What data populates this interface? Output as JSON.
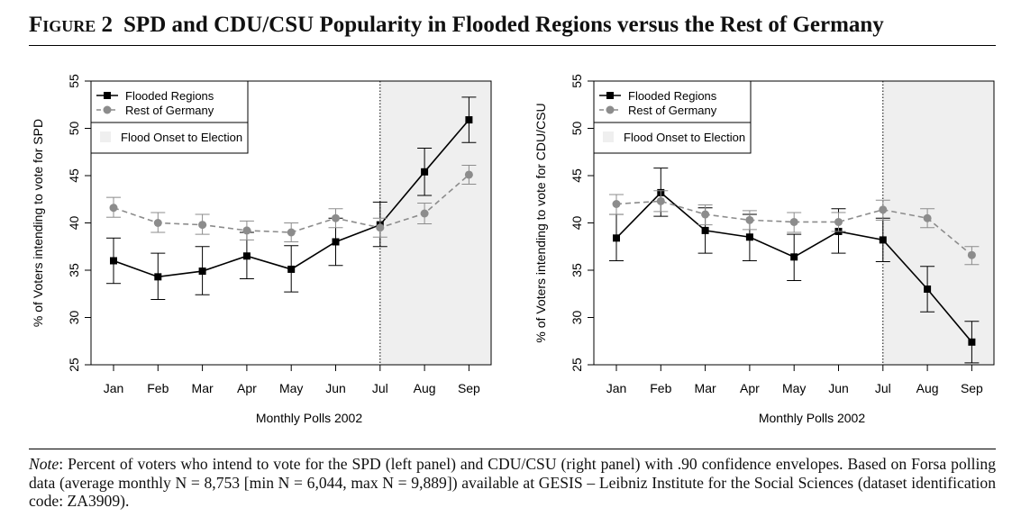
{
  "figure": {
    "label": "Figure 2",
    "title": "SPD and CDU/CSU Popularity in Flooded Regions versus the Rest of Germany"
  },
  "note": {
    "label": "Note",
    "text": ": Percent of voters who intend to vote for the SPD (left panel) and CDU/CSU (right panel) with .90 confidence envelopes. Based on Forsa polling data (average monthly N = 8,753 [min N = 6,044, max N = 9,889]) available at GESIS – Leibniz Institute for the Social Sciences (dataset identification code: ZA3909)."
  },
  "colors": {
    "flooded": "#000000",
    "rest": "#8c8c8c",
    "shade": "#efefef"
  },
  "chart_data": [
    {
      "type": "line",
      "ylabel": "% of Voters intending to vote for SPD",
      "xlabel": "Monthly Polls 2002",
      "categories": [
        "Jan",
        "Feb",
        "Mar",
        "Apr",
        "May",
        "Jun",
        "Jul",
        "Aug",
        "Sep"
      ],
      "ylim": [
        25,
        55
      ],
      "yticks": [
        25,
        30,
        35,
        40,
        45,
        50,
        55
      ],
      "shaded_region": {
        "from": "Jul",
        "to": "Sep",
        "label": "Flood Onset to Election"
      },
      "legend_position": "top-left",
      "series": [
        {
          "name": "Flooded Regions",
          "marker": "square",
          "line": "solid",
          "values": [
            36.0,
            34.3,
            34.9,
            36.5,
            35.1,
            38.0,
            39.8,
            45.4,
            50.9
          ],
          "lower": [
            33.6,
            31.9,
            32.4,
            34.1,
            32.7,
            35.5,
            37.5,
            42.9,
            48.5
          ],
          "upper": [
            38.4,
            36.8,
            37.5,
            39.0,
            37.6,
            40.5,
            42.2,
            47.9,
            53.3
          ]
        },
        {
          "name": "Rest of Germany",
          "marker": "circle",
          "line": "dashed",
          "values": [
            41.6,
            40.0,
            39.8,
            39.2,
            39.0,
            40.5,
            39.5,
            41.0,
            45.1
          ],
          "lower": [
            40.6,
            39.0,
            38.8,
            38.2,
            38.0,
            39.5,
            38.5,
            39.9,
            44.1
          ],
          "upper": [
            42.7,
            41.1,
            40.9,
            40.2,
            40.0,
            41.5,
            40.5,
            42.1,
            46.1
          ]
        }
      ]
    },
    {
      "type": "line",
      "ylabel": "% of Voters intending to vote for CDU/CSU",
      "xlabel": "Monthly Polls 2002",
      "categories": [
        "Jan",
        "Feb",
        "Mar",
        "Apr",
        "May",
        "Jun",
        "Jul",
        "Aug",
        "Sep"
      ],
      "ylim": [
        25,
        55
      ],
      "yticks": [
        25,
        30,
        35,
        40,
        45,
        50,
        55
      ],
      "shaded_region": {
        "from": "Jul",
        "to": "Sep",
        "label": "Flood Onset to Election"
      },
      "legend_position": "top-left",
      "series": [
        {
          "name": "Flooded Regions",
          "marker": "square",
          "line": "solid",
          "values": [
            38.4,
            43.2,
            39.2,
            38.5,
            36.4,
            39.1,
            38.2,
            33.0,
            27.4
          ],
          "lower": [
            36.0,
            40.7,
            36.8,
            36.0,
            33.9,
            36.8,
            35.9,
            30.6,
            25.2
          ],
          "upper": [
            40.9,
            45.8,
            41.6,
            40.9,
            38.8,
            41.5,
            40.5,
            35.4,
            29.6
          ]
        },
        {
          "name": "Rest of Germany",
          "marker": "circle",
          "line": "dashed",
          "values": [
            42.0,
            42.3,
            40.9,
            40.3,
            40.1,
            40.1,
            41.4,
            40.5,
            36.6
          ],
          "lower": [
            40.9,
            41.2,
            39.8,
            39.3,
            39.0,
            39.1,
            40.3,
            39.5,
            35.6
          ],
          "upper": [
            43.0,
            43.4,
            41.9,
            41.3,
            41.1,
            41.1,
            42.4,
            41.5,
            37.5
          ]
        }
      ]
    }
  ]
}
